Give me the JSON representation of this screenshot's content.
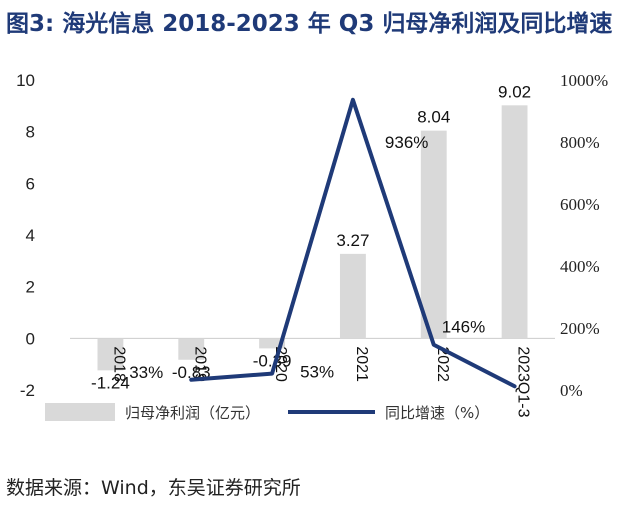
{
  "header": {
    "title": "图3:  海光信息 2018-2023 年 Q3 归母净利润及同比增速"
  },
  "chart_data": {
    "type": "bar",
    "categories": [
      "2018",
      "2019",
      "2020",
      "2021",
      "2022",
      "2023Q1-3"
    ],
    "series": [
      {
        "name": "归母净利润（亿元）",
        "type": "bar",
        "axis": "left",
        "values": [
          -1.24,
          -0.83,
          -0.39,
          3.27,
          8.04,
          9.02
        ],
        "labels": [
          "-1.24",
          "-0.83",
          "-0.39",
          "3.27",
          "8.04",
          "9.02"
        ],
        "color": "#d9d9d9"
      },
      {
        "name": "同比增速（%）",
        "type": "line",
        "axis": "right",
        "values": [
          null,
          33,
          53,
          936,
          146,
          12
        ],
        "labels": [
          "",
          "33%",
          "53%",
          "936%",
          "146%",
          ""
        ],
        "color": "#1f3a78"
      }
    ],
    "left_axis": {
      "ylim": [
        -2,
        10
      ],
      "ticks": [
        "-2",
        "0",
        "2",
        "4",
        "6",
        "8",
        "10"
      ]
    },
    "right_axis": {
      "ylim": [
        0,
        1000
      ],
      "ticks": [
        "0%",
        "200%",
        "400%",
        "600%",
        "800%",
        "1000%"
      ]
    },
    "legend": {
      "position": "bottom"
    },
    "grid": false
  },
  "footer": {
    "source": "数据来源：Wind，东吴证券研究所"
  }
}
